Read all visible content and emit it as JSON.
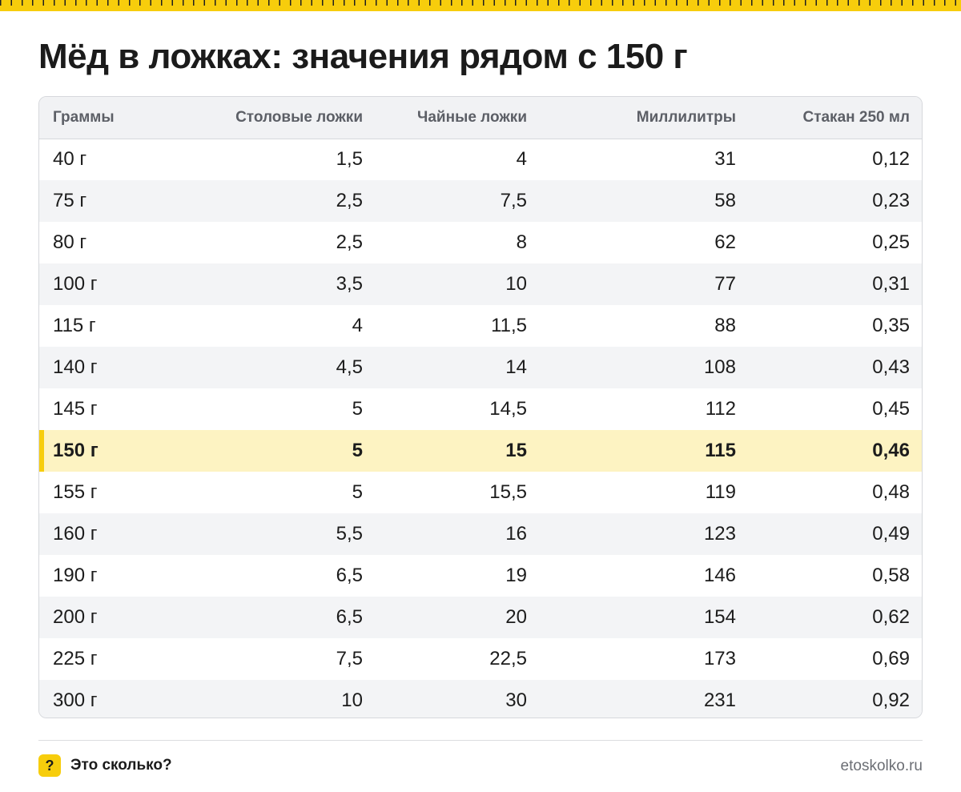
{
  "title": "Мёд в ложках: значения рядом с 150 г",
  "colors": {
    "accent": "#f7cd0c",
    "highlight_row": "#fdf3c2",
    "header_bg": "#f1f2f4",
    "stripe_bg": "#f3f4f6"
  },
  "table": {
    "headers": [
      "Граммы",
      "Столовые ложки",
      "Чайные ложки",
      "Миллилитры",
      "Стакан 250 мл"
    ],
    "highlighted_row_index": 7,
    "rows": [
      [
        "40 г",
        "1,5",
        "4",
        "31",
        "0,12"
      ],
      [
        "75 г",
        "2,5",
        "7,5",
        "58",
        "0,23"
      ],
      [
        "80 г",
        "2,5",
        "8",
        "62",
        "0,25"
      ],
      [
        "100 г",
        "3,5",
        "10",
        "77",
        "0,31"
      ],
      [
        "115 г",
        "4",
        "11,5",
        "88",
        "0,35"
      ],
      [
        "140 г",
        "4,5",
        "14",
        "108",
        "0,43"
      ],
      [
        "145 г",
        "5",
        "14,5",
        "112",
        "0,45"
      ],
      [
        "150 г",
        "5",
        "15",
        "115",
        "0,46"
      ],
      [
        "155 г",
        "5",
        "15,5",
        "119",
        "0,48"
      ],
      [
        "160 г",
        "5,5",
        "16",
        "123",
        "0,49"
      ],
      [
        "190 г",
        "6,5",
        "19",
        "146",
        "0,58"
      ],
      [
        "200 г",
        "6,5",
        "20",
        "154",
        "0,62"
      ],
      [
        "225 г",
        "7,5",
        "22,5",
        "173",
        "0,69"
      ],
      [
        "300 г",
        "10",
        "30",
        "231",
        "0,92"
      ]
    ]
  },
  "footer": {
    "badge_icon": "?",
    "brand_name": "Это сколько?",
    "site": "etoskolko.ru"
  }
}
